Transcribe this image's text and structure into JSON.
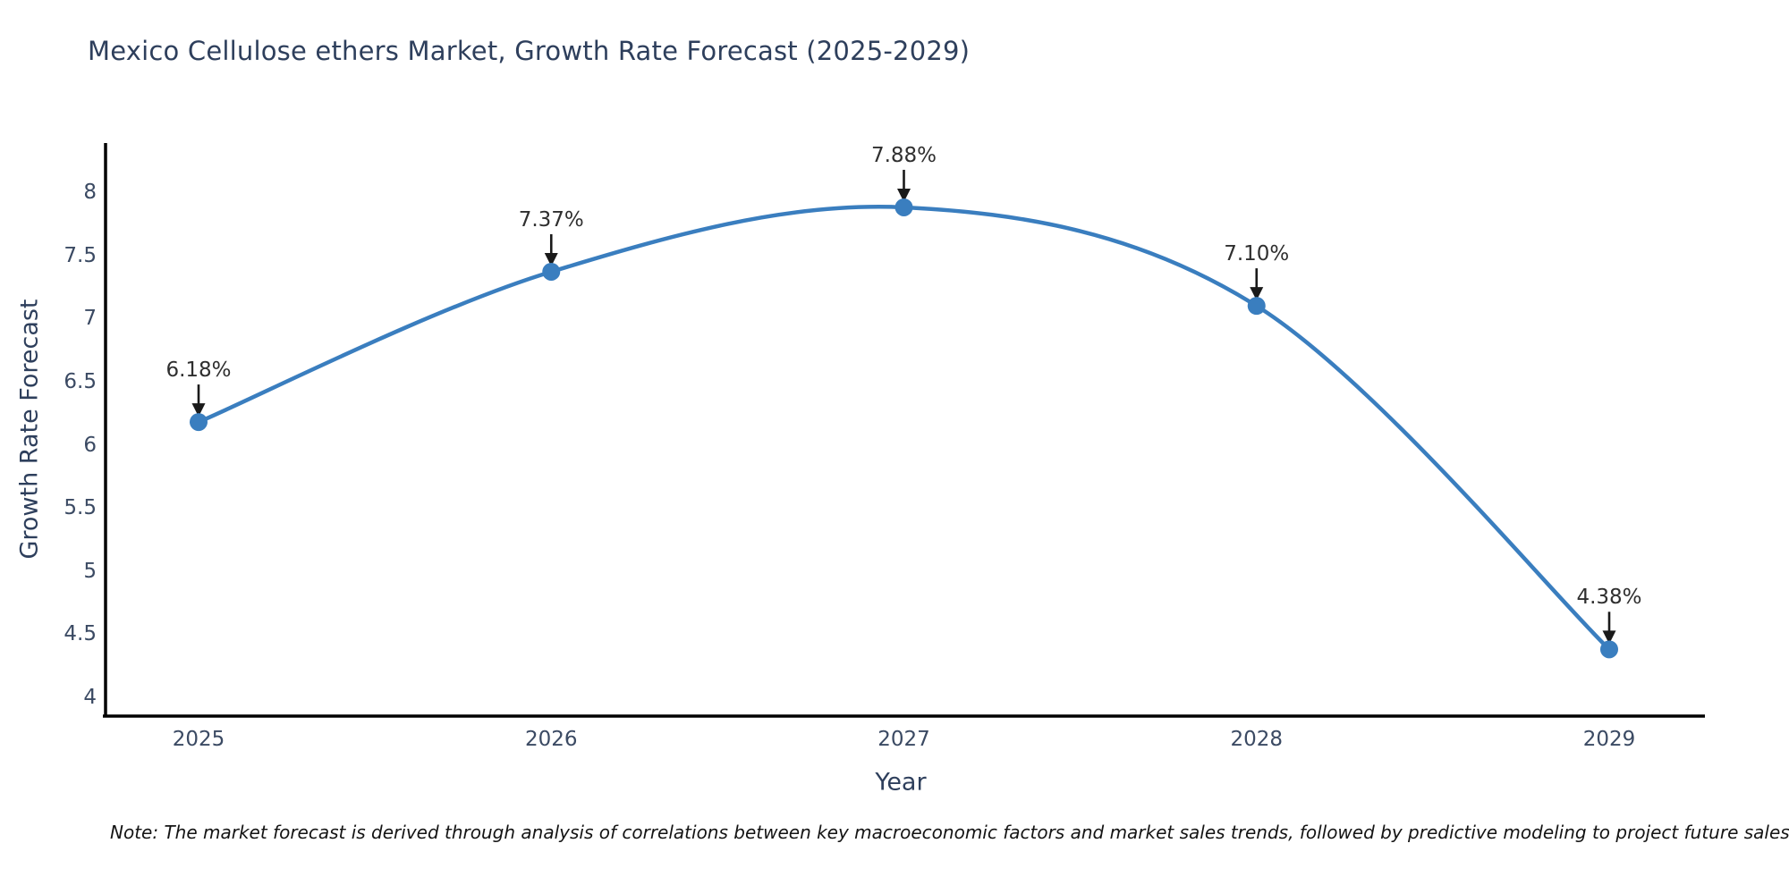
{
  "title": "Mexico Cellulose ethers Market, Growth Rate Forecast (2025-2029)",
  "note": "Note: The market forecast is derived through analysis of correlations between key macroeconomic factors and market sales trends, followed by predictive modeling to project future sales",
  "chart_data": {
    "type": "line",
    "title": "Mexico Cellulose ethers Market, Growth Rate Forecast (2025-2029)",
    "xlabel": "Year",
    "ylabel": "Growth Rate Forecast",
    "categories": [
      "2025",
      "2026",
      "2027",
      "2028",
      "2029"
    ],
    "values": [
      6.18,
      7.37,
      7.88,
      7.1,
      4.38
    ],
    "point_labels": [
      "6.18%",
      "7.37%",
      "7.88%",
      "7.10%",
      "4.38%"
    ],
    "yticks": [
      4,
      4.5,
      5,
      5.5,
      6,
      6.5,
      7,
      7.5,
      8
    ],
    "ylim": [
      4,
      8
    ],
    "grid": false,
    "legend": "none",
    "smooth": true,
    "line_color": "#3a7ebf",
    "marker_color": "#3a7ebf",
    "axis_color": "#000000",
    "text_color": "#2e3f5c",
    "annotation_color": "#2f2f2f",
    "arrow_color": "#1a1a1a"
  }
}
